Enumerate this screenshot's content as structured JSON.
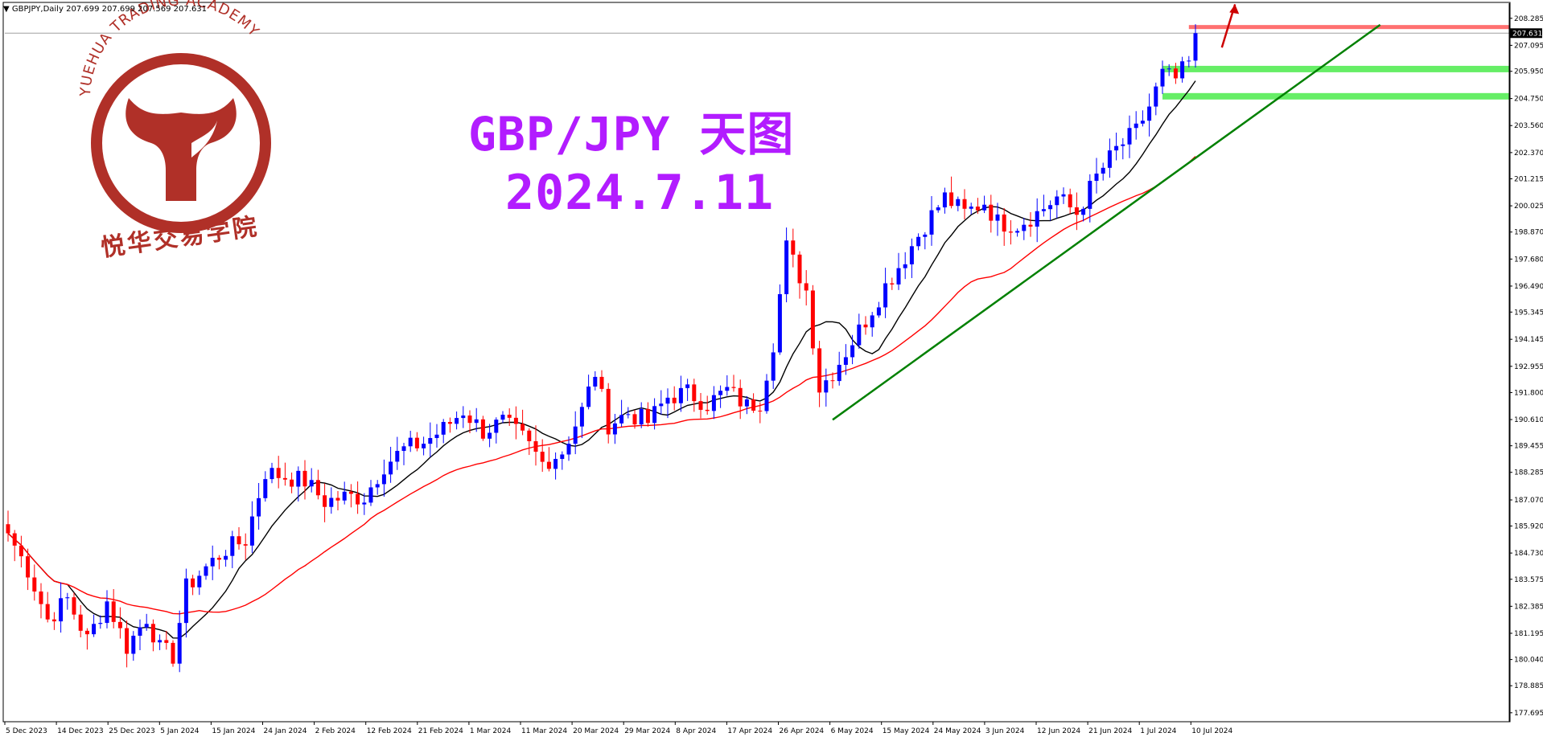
{
  "window": {
    "symbol": "GBPJPY,Daily",
    "ohlc": "207.699 207.699 207.569 207.631",
    "dropdown_marker": "▼"
  },
  "annotations": {
    "title": "GBP/JPY 天图",
    "date": "2024.7.11"
  },
  "logo": {
    "arc_text": "YUEHUA TRADING ACADEMY",
    "chinese_text": "悦华交易学院",
    "color": "#b03028"
  },
  "chart_data": {
    "type": "candlestick",
    "symbol": "GBPJPY",
    "timeframe": "Daily",
    "ylim": [
      177.3,
      208.95
    ],
    "y_ticks": [
      "208.285",
      "207.095",
      "205.950",
      "204.750",
      "203.560",
      "202.370",
      "201.215",
      "200.025",
      "198.870",
      "197.680",
      "196.490",
      "195.345",
      "194.145",
      "192.955",
      "191.800",
      "190.610",
      "189.455",
      "188.285",
      "187.070",
      "185.920",
      "184.730",
      "183.575",
      "182.385",
      "181.195",
      "180.040",
      "178.885",
      "177.695"
    ],
    "x_ticks": [
      "5 Dec 2023",
      "14 Dec 2023",
      "25 Dec 2023",
      "5 Jan 2024",
      "15 Jan 2024",
      "24 Jan 2024",
      "2 Feb 2024",
      "12 Feb 2024",
      "21 Feb 2024",
      "1 Mar 2024",
      "11 Mar 2024",
      "20 Mar 2024",
      "29 Mar 2024",
      "8 Apr 2024",
      "17 Apr 2024",
      "26 Apr 2024",
      "6 May 2024",
      "15 May 2024",
      "24 May 2024",
      "3 Jun 2024",
      "12 Jun 2024",
      "21 Jun 2024",
      "1 Jul 2024",
      "10 Jul 2024"
    ],
    "current_price": "207.631",
    "colors": {
      "bull": "#0000ff",
      "bear": "#ff0000",
      "ma_fast": "#000000",
      "ma_slow": "#ff0000",
      "trendline": "#008000",
      "zone": "#66ee66",
      "resistance": "#ff7070",
      "arrow": "#cc0000"
    },
    "anchors": [
      {
        "i": 0,
        "p": 185.6
      },
      {
        "i": 3,
        "p": 184.0
      },
      {
        "i": 6,
        "p": 181.8
      },
      {
        "i": 9,
        "p": 182.7
      },
      {
        "i": 12,
        "p": 180.9
      },
      {
        "i": 15,
        "p": 182.6
      },
      {
        "i": 18,
        "p": 180.6
      },
      {
        "i": 21,
        "p": 181.9
      },
      {
        "i": 23,
        "p": 180.5
      },
      {
        "i": 25,
        "p": 180.2
      },
      {
        "i": 27,
        "p": 183.2
      },
      {
        "i": 30,
        "p": 184.1
      },
      {
        "i": 33,
        "p": 184.9
      },
      {
        "i": 36,
        "p": 185.3
      },
      {
        "i": 39,
        "p": 188.3
      },
      {
        "i": 42,
        "p": 188.1
      },
      {
        "i": 45,
        "p": 187.9
      },
      {
        "i": 48,
        "p": 187.0
      },
      {
        "i": 51,
        "p": 187.2
      },
      {
        "i": 54,
        "p": 187.2
      },
      {
        "i": 57,
        "p": 188.6
      },
      {
        "i": 60,
        "p": 189.3
      },
      {
        "i": 63,
        "p": 189.6
      },
      {
        "i": 66,
        "p": 190.2
      },
      {
        "i": 69,
        "p": 191.0
      },
      {
        "i": 72,
        "p": 190.1
      },
      {
        "i": 75,
        "p": 190.5
      },
      {
        "i": 78,
        "p": 189.8
      },
      {
        "i": 81,
        "p": 188.7
      },
      {
        "i": 84,
        "p": 189.2
      },
      {
        "i": 87,
        "p": 191.0
      },
      {
        "i": 89,
        "p": 192.7
      },
      {
        "i": 91,
        "p": 190.4
      },
      {
        "i": 94,
        "p": 190.9
      },
      {
        "i": 97,
        "p": 190.5
      },
      {
        "i": 100,
        "p": 191.6
      },
      {
        "i": 103,
        "p": 191.8
      },
      {
        "i": 106,
        "p": 191.3
      },
      {
        "i": 109,
        "p": 191.9
      },
      {
        "i": 112,
        "p": 191.2
      },
      {
        "i": 114,
        "p": 191.4
      },
      {
        "i": 116,
        "p": 194.0
      },
      {
        "i": 118,
        "p": 198.2
      },
      {
        "i": 121,
        "p": 196.3
      },
      {
        "i": 123,
        "p": 192.0
      },
      {
        "i": 125,
        "p": 192.7
      },
      {
        "i": 127,
        "p": 193.6
      },
      {
        "i": 130,
        "p": 195.0
      },
      {
        "i": 133,
        "p": 196.5
      },
      {
        "i": 136,
        "p": 197.8
      },
      {
        "i": 139,
        "p": 199.2
      },
      {
        "i": 142,
        "p": 200.4
      },
      {
        "i": 145,
        "p": 199.7
      },
      {
        "i": 148,
        "p": 200.2
      },
      {
        "i": 150,
        "p": 199.3
      },
      {
        "i": 153,
        "p": 199.2
      },
      {
        "i": 156,
        "p": 199.7
      },
      {
        "i": 159,
        "p": 200.4
      },
      {
        "i": 162,
        "p": 199.7
      },
      {
        "i": 165,
        "p": 201.3
      },
      {
        "i": 168,
        "p": 202.5
      },
      {
        "i": 171,
        "p": 203.3
      },
      {
        "i": 173,
        "p": 204.4
      },
      {
        "i": 175,
        "p": 205.8
      },
      {
        "i": 177,
        "p": 205.6
      },
      {
        "i": 179,
        "p": 206.3
      },
      {
        "i": 180,
        "p": 207.63
      }
    ],
    "trendline": {
      "from": {
        "i": 125,
        "p": 190.6
      },
      "to": {
        "i": 208,
        "p": 208.0
      }
    },
    "support_zones": [
      206.05,
      204.85
    ],
    "resistance_line": 207.9,
    "current_price_line": 207.631
  }
}
